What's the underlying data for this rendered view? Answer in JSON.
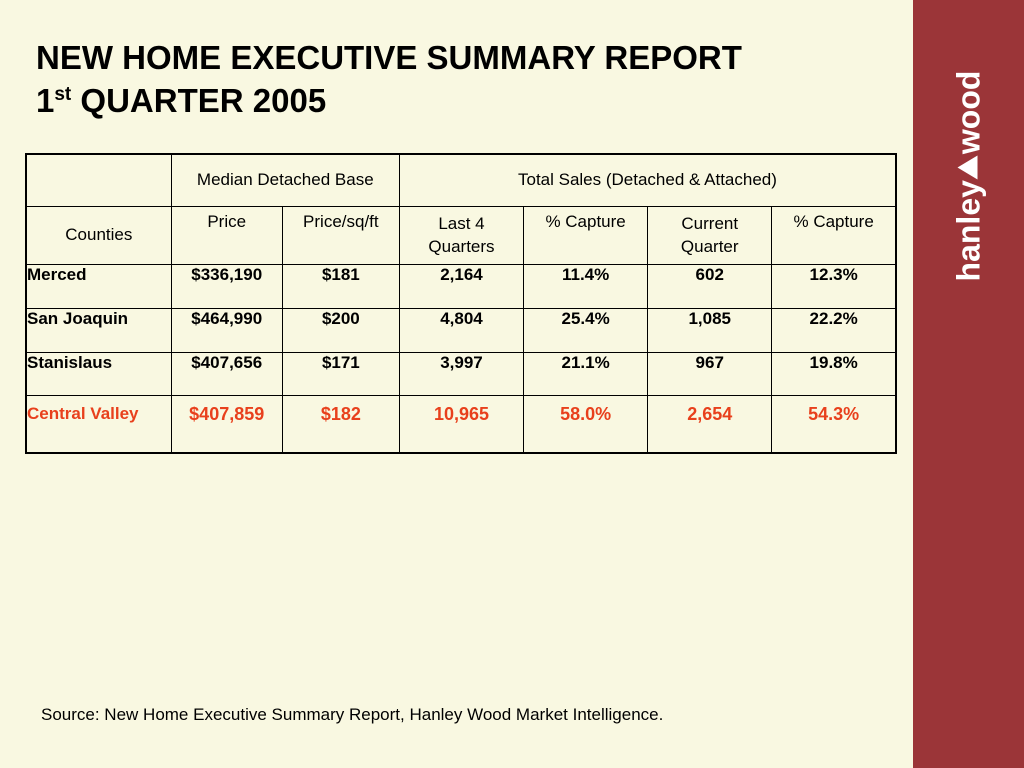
{
  "title": {
    "line1": "NEW HOME EXECUTIVE SUMMARY REPORT",
    "quarter_num": "1",
    "quarter_sup": "st",
    "quarter_rest": " QUARTER 2005"
  },
  "logo": {
    "left": "hanley",
    "right": "wood"
  },
  "colors": {
    "sidebar": "#9b3538",
    "background": "#f9f8e1",
    "highlight": "#e8401c"
  },
  "table": {
    "group_headers": [
      "",
      "Median Detached Base",
      "Total Sales (Detached & Attached)"
    ],
    "columns": [
      "Counties",
      "Price",
      "Price/sq/ft",
      "Last 4 Quarters",
      "% Capture",
      "Current Quarter",
      "% Capture"
    ],
    "rows": [
      {
        "county": "Merced",
        "price": "$336,190",
        "price_sqft": "$181",
        "last4": "2,164",
        "capture1": "11.4%",
        "current": "602",
        "capture2": "12.3%"
      },
      {
        "county": "San Joaquin",
        "price": "$464,990",
        "price_sqft": "$200",
        "last4": "4,804",
        "capture1": "25.4%",
        "current": "1,085",
        "capture2": "22.2%"
      },
      {
        "county": "Stanislaus",
        "price": "$407,656",
        "price_sqft": "$171",
        "last4": "3,997",
        "capture1": "21.1%",
        "current": "967",
        "capture2": "19.8%"
      }
    ],
    "total": {
      "county": "Central Valley",
      "price": "$407,859",
      "price_sqft": "$182",
      "last4": "10,965",
      "capture1": "58.0%",
      "current": "2,654",
      "capture2": "54.3%"
    }
  },
  "source": "Source: New Home Executive Summary Report, Hanley Wood Market Intelligence."
}
